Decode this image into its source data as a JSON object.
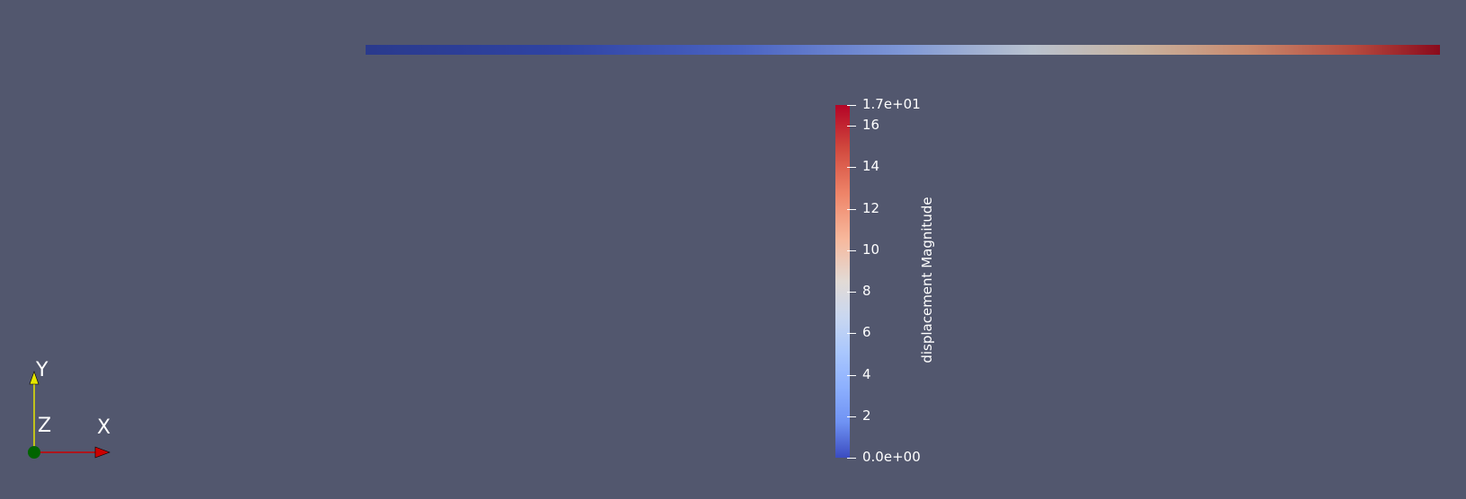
{
  "scalar_bar": {
    "title": "displacement Magnitude",
    "range": [
      0,
      17
    ],
    "ticks": [
      {
        "label": "1.7e+01",
        "value": 17
      },
      {
        "label": "16",
        "value": 16
      },
      {
        "label": "14",
        "value": 14
      },
      {
        "label": "12",
        "value": 12
      },
      {
        "label": "10",
        "value": 10
      },
      {
        "label": "8",
        "value": 8
      },
      {
        "label": "6",
        "value": 6
      },
      {
        "label": "4",
        "value": 4
      },
      {
        "label": "2",
        "value": 2
      },
      {
        "label": "0.0e+00",
        "value": 0
      }
    ],
    "colormap": [
      "#3b4cc0",
      "#8db0fe",
      "#dddddd",
      "#f49a7b",
      "#b40426"
    ]
  },
  "axes": {
    "x_label": "X",
    "y_label": "Y",
    "z_label": "Z",
    "x_color": "#cc0000",
    "y_color": "#e6e600",
    "z_color": "#006400"
  },
  "background_color": "#52576e"
}
